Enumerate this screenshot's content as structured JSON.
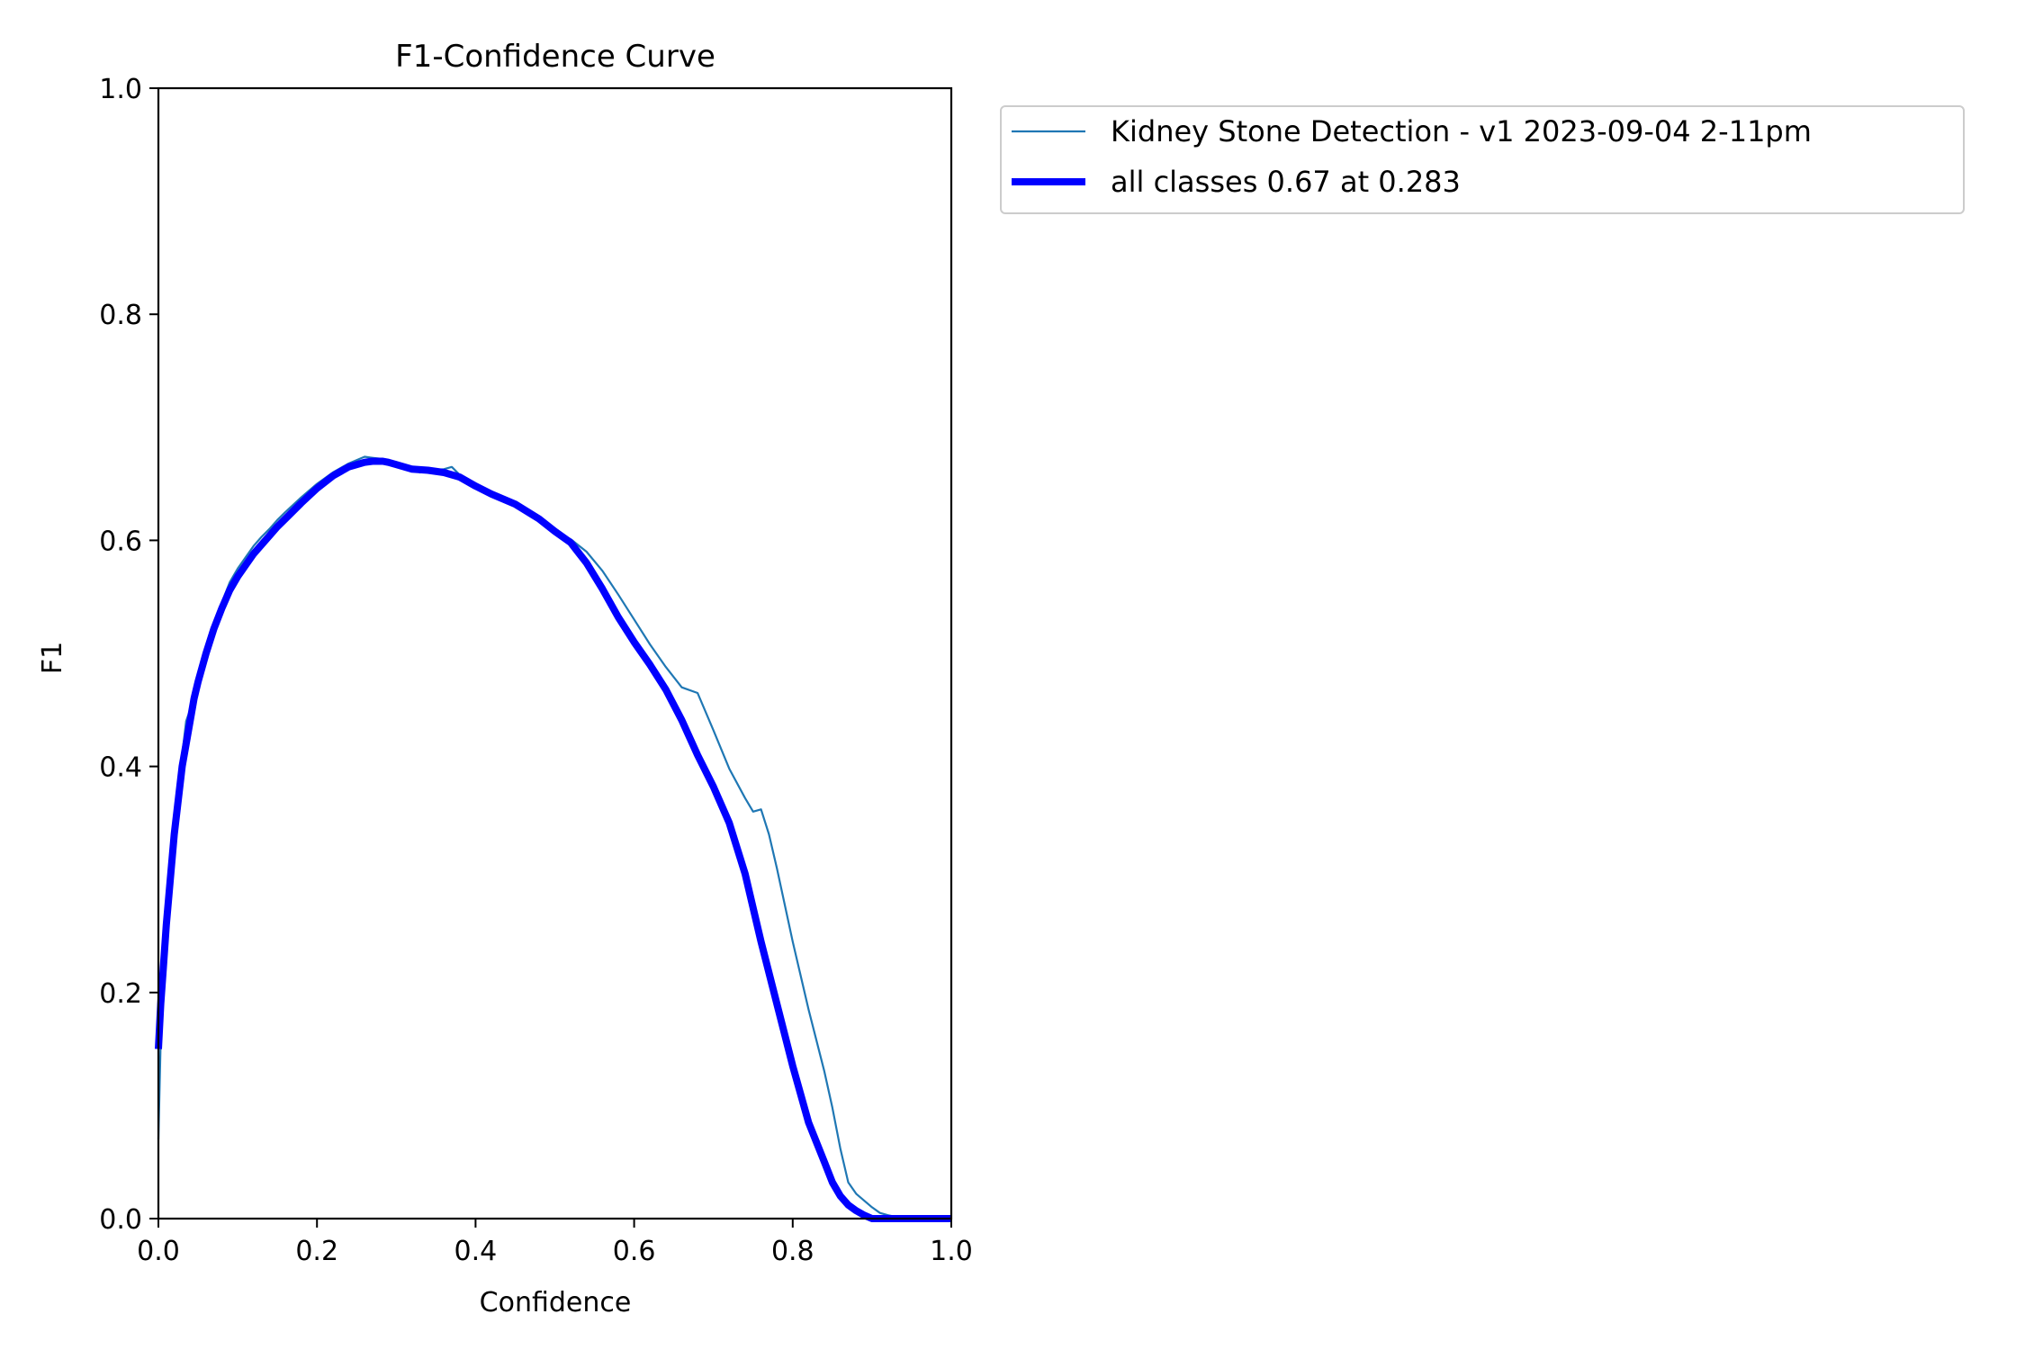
{
  "chart_data": {
    "type": "line",
    "title": "F1-Confidence Curve",
    "xlabel": "Confidence",
    "ylabel": "F1",
    "xlim": [
      0.0,
      1.0
    ],
    "ylim": [
      0.0,
      1.0
    ],
    "x_ticks": [
      "0.0",
      "0.2",
      "0.4",
      "0.6",
      "0.8",
      "1.0"
    ],
    "y_ticks": [
      "0.0",
      "0.2",
      "0.4",
      "0.6",
      "0.8",
      "1.0"
    ],
    "grid": false,
    "legend_position": "outside upper right",
    "series": [
      {
        "name": "Kidney Stone Detection - v1 2023-09-04 2-11pm",
        "color": "#1f77b4",
        "style": "thin",
        "x": [
          0.0,
          0.003,
          0.006,
          0.01,
          0.015,
          0.02,
          0.025,
          0.03,
          0.035,
          0.04,
          0.045,
          0.05,
          0.06,
          0.07,
          0.08,
          0.09,
          0.1,
          0.11,
          0.12,
          0.13,
          0.14,
          0.15,
          0.16,
          0.18,
          0.2,
          0.22,
          0.24,
          0.26,
          0.27,
          0.283,
          0.29,
          0.3,
          0.32,
          0.33,
          0.34,
          0.36,
          0.37,
          0.38,
          0.4,
          0.42,
          0.45,
          0.48,
          0.5,
          0.52,
          0.54,
          0.56,
          0.58,
          0.6,
          0.62,
          0.64,
          0.66,
          0.68,
          0.7,
          0.72,
          0.74,
          0.75,
          0.76,
          0.77,
          0.78,
          0.8,
          0.82,
          0.84,
          0.85,
          0.86,
          0.87,
          0.88,
          0.89,
          0.9,
          0.91,
          0.92,
          0.94,
          0.96,
          0.98,
          1.0
        ],
        "y": [
          0.07,
          0.16,
          0.21,
          0.25,
          0.3,
          0.35,
          0.38,
          0.41,
          0.44,
          0.45,
          0.46,
          0.48,
          0.505,
          0.525,
          0.545,
          0.563,
          0.575,
          0.585,
          0.595,
          0.603,
          0.61,
          0.618,
          0.625,
          0.638,
          0.65,
          0.66,
          0.668,
          0.674,
          0.673,
          0.672,
          0.671,
          0.668,
          0.664,
          0.66,
          0.662,
          0.663,
          0.665,
          0.658,
          0.648,
          0.641,
          0.631,
          0.618,
          0.607,
          0.601,
          0.59,
          0.573,
          0.552,
          0.53,
          0.508,
          0.488,
          0.47,
          0.465,
          0.432,
          0.398,
          0.372,
          0.36,
          0.362,
          0.34,
          0.31,
          0.245,
          0.185,
          0.13,
          0.098,
          0.062,
          0.032,
          0.022,
          0.016,
          0.01,
          0.005,
          0.003,
          0.0,
          0.0,
          0.0,
          0.0
        ]
      },
      {
        "name": "all classes 0.67 at 0.283",
        "color": "#0000ff",
        "style": "thick",
        "x": [
          0.0,
          0.003,
          0.006,
          0.01,
          0.015,
          0.02,
          0.025,
          0.03,
          0.035,
          0.04,
          0.045,
          0.05,
          0.06,
          0.07,
          0.08,
          0.09,
          0.1,
          0.11,
          0.12,
          0.13,
          0.14,
          0.15,
          0.16,
          0.18,
          0.2,
          0.22,
          0.24,
          0.26,
          0.27,
          0.283,
          0.29,
          0.3,
          0.32,
          0.34,
          0.36,
          0.38,
          0.4,
          0.42,
          0.45,
          0.48,
          0.5,
          0.52,
          0.54,
          0.56,
          0.58,
          0.6,
          0.62,
          0.64,
          0.66,
          0.68,
          0.7,
          0.72,
          0.74,
          0.76,
          0.78,
          0.8,
          0.82,
          0.84,
          0.85,
          0.86,
          0.87,
          0.88,
          0.89,
          0.9,
          0.91,
          0.92,
          0.94,
          0.96,
          0.98,
          1.0
        ],
        "y": [
          0.15,
          0.19,
          0.22,
          0.26,
          0.3,
          0.34,
          0.37,
          0.4,
          0.42,
          0.44,
          0.46,
          0.475,
          0.5,
          0.522,
          0.54,
          0.556,
          0.568,
          0.578,
          0.588,
          0.596,
          0.604,
          0.612,
          0.619,
          0.633,
          0.646,
          0.657,
          0.665,
          0.669,
          0.67,
          0.67,
          0.669,
          0.667,
          0.663,
          0.662,
          0.66,
          0.656,
          0.648,
          0.641,
          0.632,
          0.619,
          0.608,
          0.598,
          0.58,
          0.557,
          0.532,
          0.51,
          0.49,
          0.468,
          0.441,
          0.41,
          0.382,
          0.35,
          0.305,
          0.245,
          0.19,
          0.135,
          0.085,
          0.05,
          0.032,
          0.02,
          0.012,
          0.007,
          0.003,
          0.0,
          0.0,
          0.0,
          0.0,
          0.0,
          0.0,
          0.0
        ]
      }
    ]
  }
}
